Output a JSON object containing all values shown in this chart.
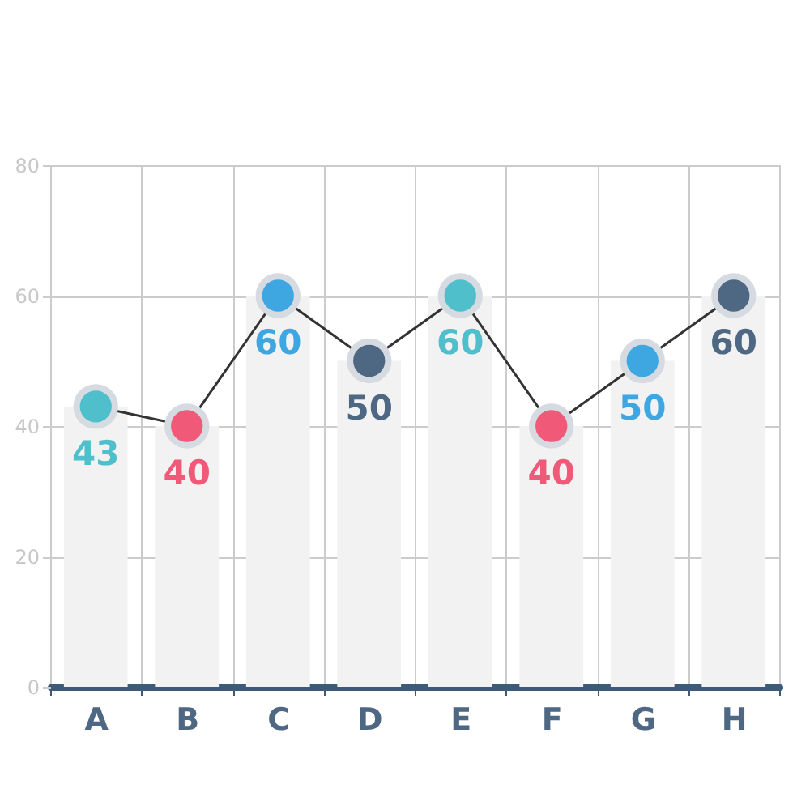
{
  "chart_data": {
    "type": "line",
    "categories": [
      "A",
      "B",
      "C",
      "D",
      "E",
      "F",
      "G",
      "H"
    ],
    "series": [
      {
        "type": "bar",
        "color": "#f2f2f2",
        "values": [
          43,
          40,
          60,
          50,
          60,
          40,
          50,
          60
        ]
      },
      {
        "color": "#333333",
        "colors": [
          "#4fbfcb",
          "#f05a78",
          "#3ea6e0",
          "#4e6782",
          "#4fbfcb",
          "#f05a78",
          "#3ea6e0",
          "#4e6782"
        ],
        "values": [
          43,
          40,
          60,
          50,
          60,
          40,
          50,
          60
        ],
        "value_labels": [
          "43",
          "40",
          "60",
          "50",
          "60",
          "40",
          "50",
          "60"
        ]
      }
    ],
    "ylim": [
      0,
      80
    ],
    "yticks": [
      0,
      20,
      40,
      60,
      80
    ],
    "grid": true,
    "marker": "circle"
  }
}
